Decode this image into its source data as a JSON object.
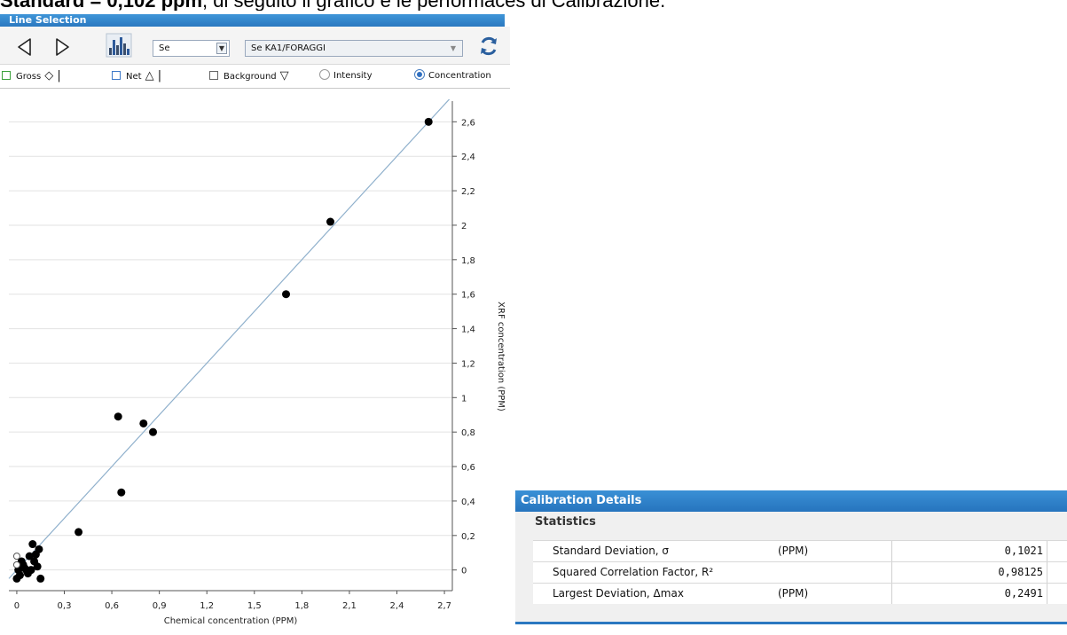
{
  "document": {
    "heading_bold": "Standard = 0,102 ppm",
    "heading_rest": ", di seguito il grafico e le performaces di Calibrazione."
  },
  "line_selection": {
    "title": "Line Selection",
    "element": "Se",
    "line": "Se KA1/FORAGGI",
    "modes": {
      "gross": "Gross",
      "net": "Net",
      "background": "Background",
      "intensity": "Intensity",
      "concentration": "Concentration",
      "selected": "Concentration"
    },
    "icons": [
      "prev-arrow-icon",
      "next-arrow-icon",
      "spectrum-icon",
      "refresh-icon"
    ],
    "accent_color": "#2a78c0"
  },
  "chart_data": {
    "type": "scatter",
    "title": "",
    "xlabel": "Chemical concentration (PPM)",
    "ylabel": "XRF concentration (PPM)",
    "xlim": [
      -0.05,
      2.75
    ],
    "ylim": [
      -0.12,
      2.72
    ],
    "xticks": [
      "0",
      "0,3",
      "0,6",
      "0,9",
      "1,2",
      "1,5",
      "1,8",
      "2,1",
      "2,4",
      "2,7"
    ],
    "yticks": [
      "0",
      "0,2",
      "0,4",
      "0,6",
      "0,8",
      "1",
      "1,2",
      "1,4",
      "1,6",
      "1,8",
      "2",
      "2,2",
      "2,4",
      "2,6"
    ],
    "grid": "horizontal",
    "y_axis_side": "right",
    "line_color": "#8fb0cc",
    "point_color": "#000000",
    "series": [
      {
        "values": [
          [
            2.6,
            2.6
          ],
          [
            1.98,
            2.02
          ],
          [
            1.7,
            1.6
          ],
          [
            0.64,
            0.89
          ],
          [
            0.8,
            0.85
          ],
          [
            0.86,
            0.8
          ],
          [
            0.66,
            0.45
          ],
          [
            0.39,
            0.22
          ],
          [
            0.1,
            0.15
          ],
          [
            0.14,
            0.12
          ],
          [
            0.12,
            0.09
          ],
          [
            0.08,
            0.08
          ],
          [
            0.03,
            0.05
          ],
          [
            0.01,
            0.0
          ],
          [
            0.05,
            0.01
          ],
          [
            0.09,
            0.0
          ],
          [
            0.13,
            0.02
          ],
          [
            0.02,
            -0.03
          ],
          [
            0.07,
            -0.02
          ],
          [
            0.15,
            -0.05
          ],
          [
            0.0,
            -0.05
          ],
          [
            0.04,
            0.03
          ],
          [
            0.11,
            0.05
          ],
          [
            0.06,
            0.0
          ]
        ]
      },
      {
        "values": [
          [
            0.0,
            0.08
          ],
          [
            0.0,
            0.03
          ]
        ],
        "hollow": true
      }
    ],
    "fit_line": [
      [
        -0.05,
        -0.05
      ],
      [
        2.75,
        2.75
      ]
    ]
  },
  "calibration": {
    "title": "Calibration Details",
    "section": "Statistics",
    "rows": [
      {
        "label": "Standard Deviation, σ",
        "unit": "(PPM)",
        "value": "0,1021"
      },
      {
        "label": "Squared Correlation Factor, R²",
        "unit": "",
        "value": "0,98125"
      },
      {
        "label": "Largest Deviation, Δmax",
        "unit": "(PPM)",
        "value": "0,2491"
      }
    ]
  }
}
